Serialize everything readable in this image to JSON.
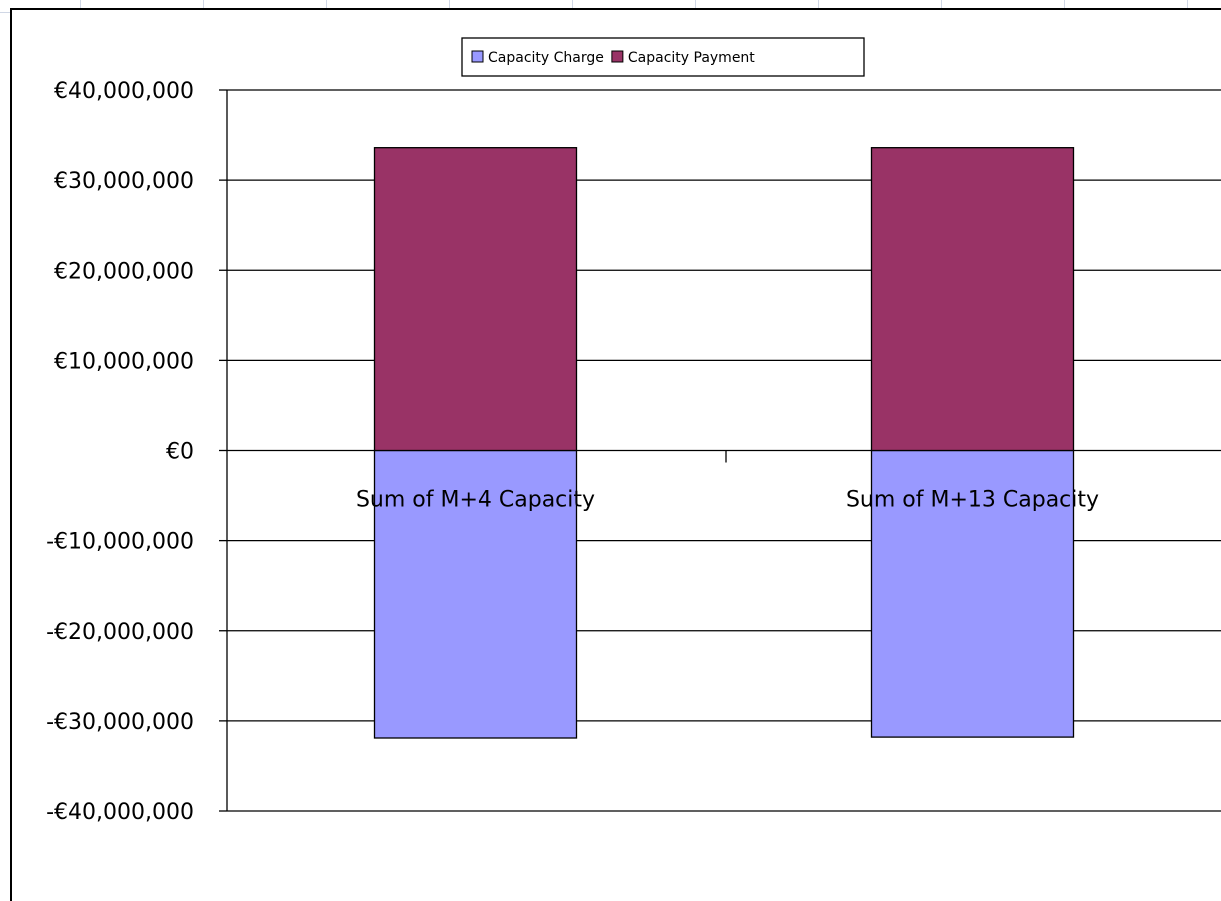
{
  "chart_data": {
    "type": "bar",
    "stacked": true,
    "categories": [
      "Sum of M+4 Capacity",
      "Sum of M+13 Capacity"
    ],
    "series": [
      {
        "name": "Capacity Charge",
        "values": [
          -31900000,
          -31800000
        ],
        "color": "#9999ff"
      },
      {
        "name": "Capacity Payment",
        "values": [
          33600000,
          33600000
        ],
        "color": "#993366"
      }
    ],
    "ylim": [
      -40000000,
      40000000
    ],
    "yticks": [
      40000000,
      30000000,
      20000000,
      10000000,
      0,
      -10000000,
      -20000000,
      -30000000,
      -40000000
    ],
    "ytick_labels": [
      "€40,000,000",
      "€30,000,000",
      "€20,000,000",
      "€10,000,000",
      "€0",
      "-€10,000,000",
      "-€20,000,000",
      "-€30,000,000",
      "-€40,000,000"
    ],
    "grid": true,
    "legend_position": "top-center",
    "title": "",
    "xlabel": "",
    "ylabel": ""
  }
}
